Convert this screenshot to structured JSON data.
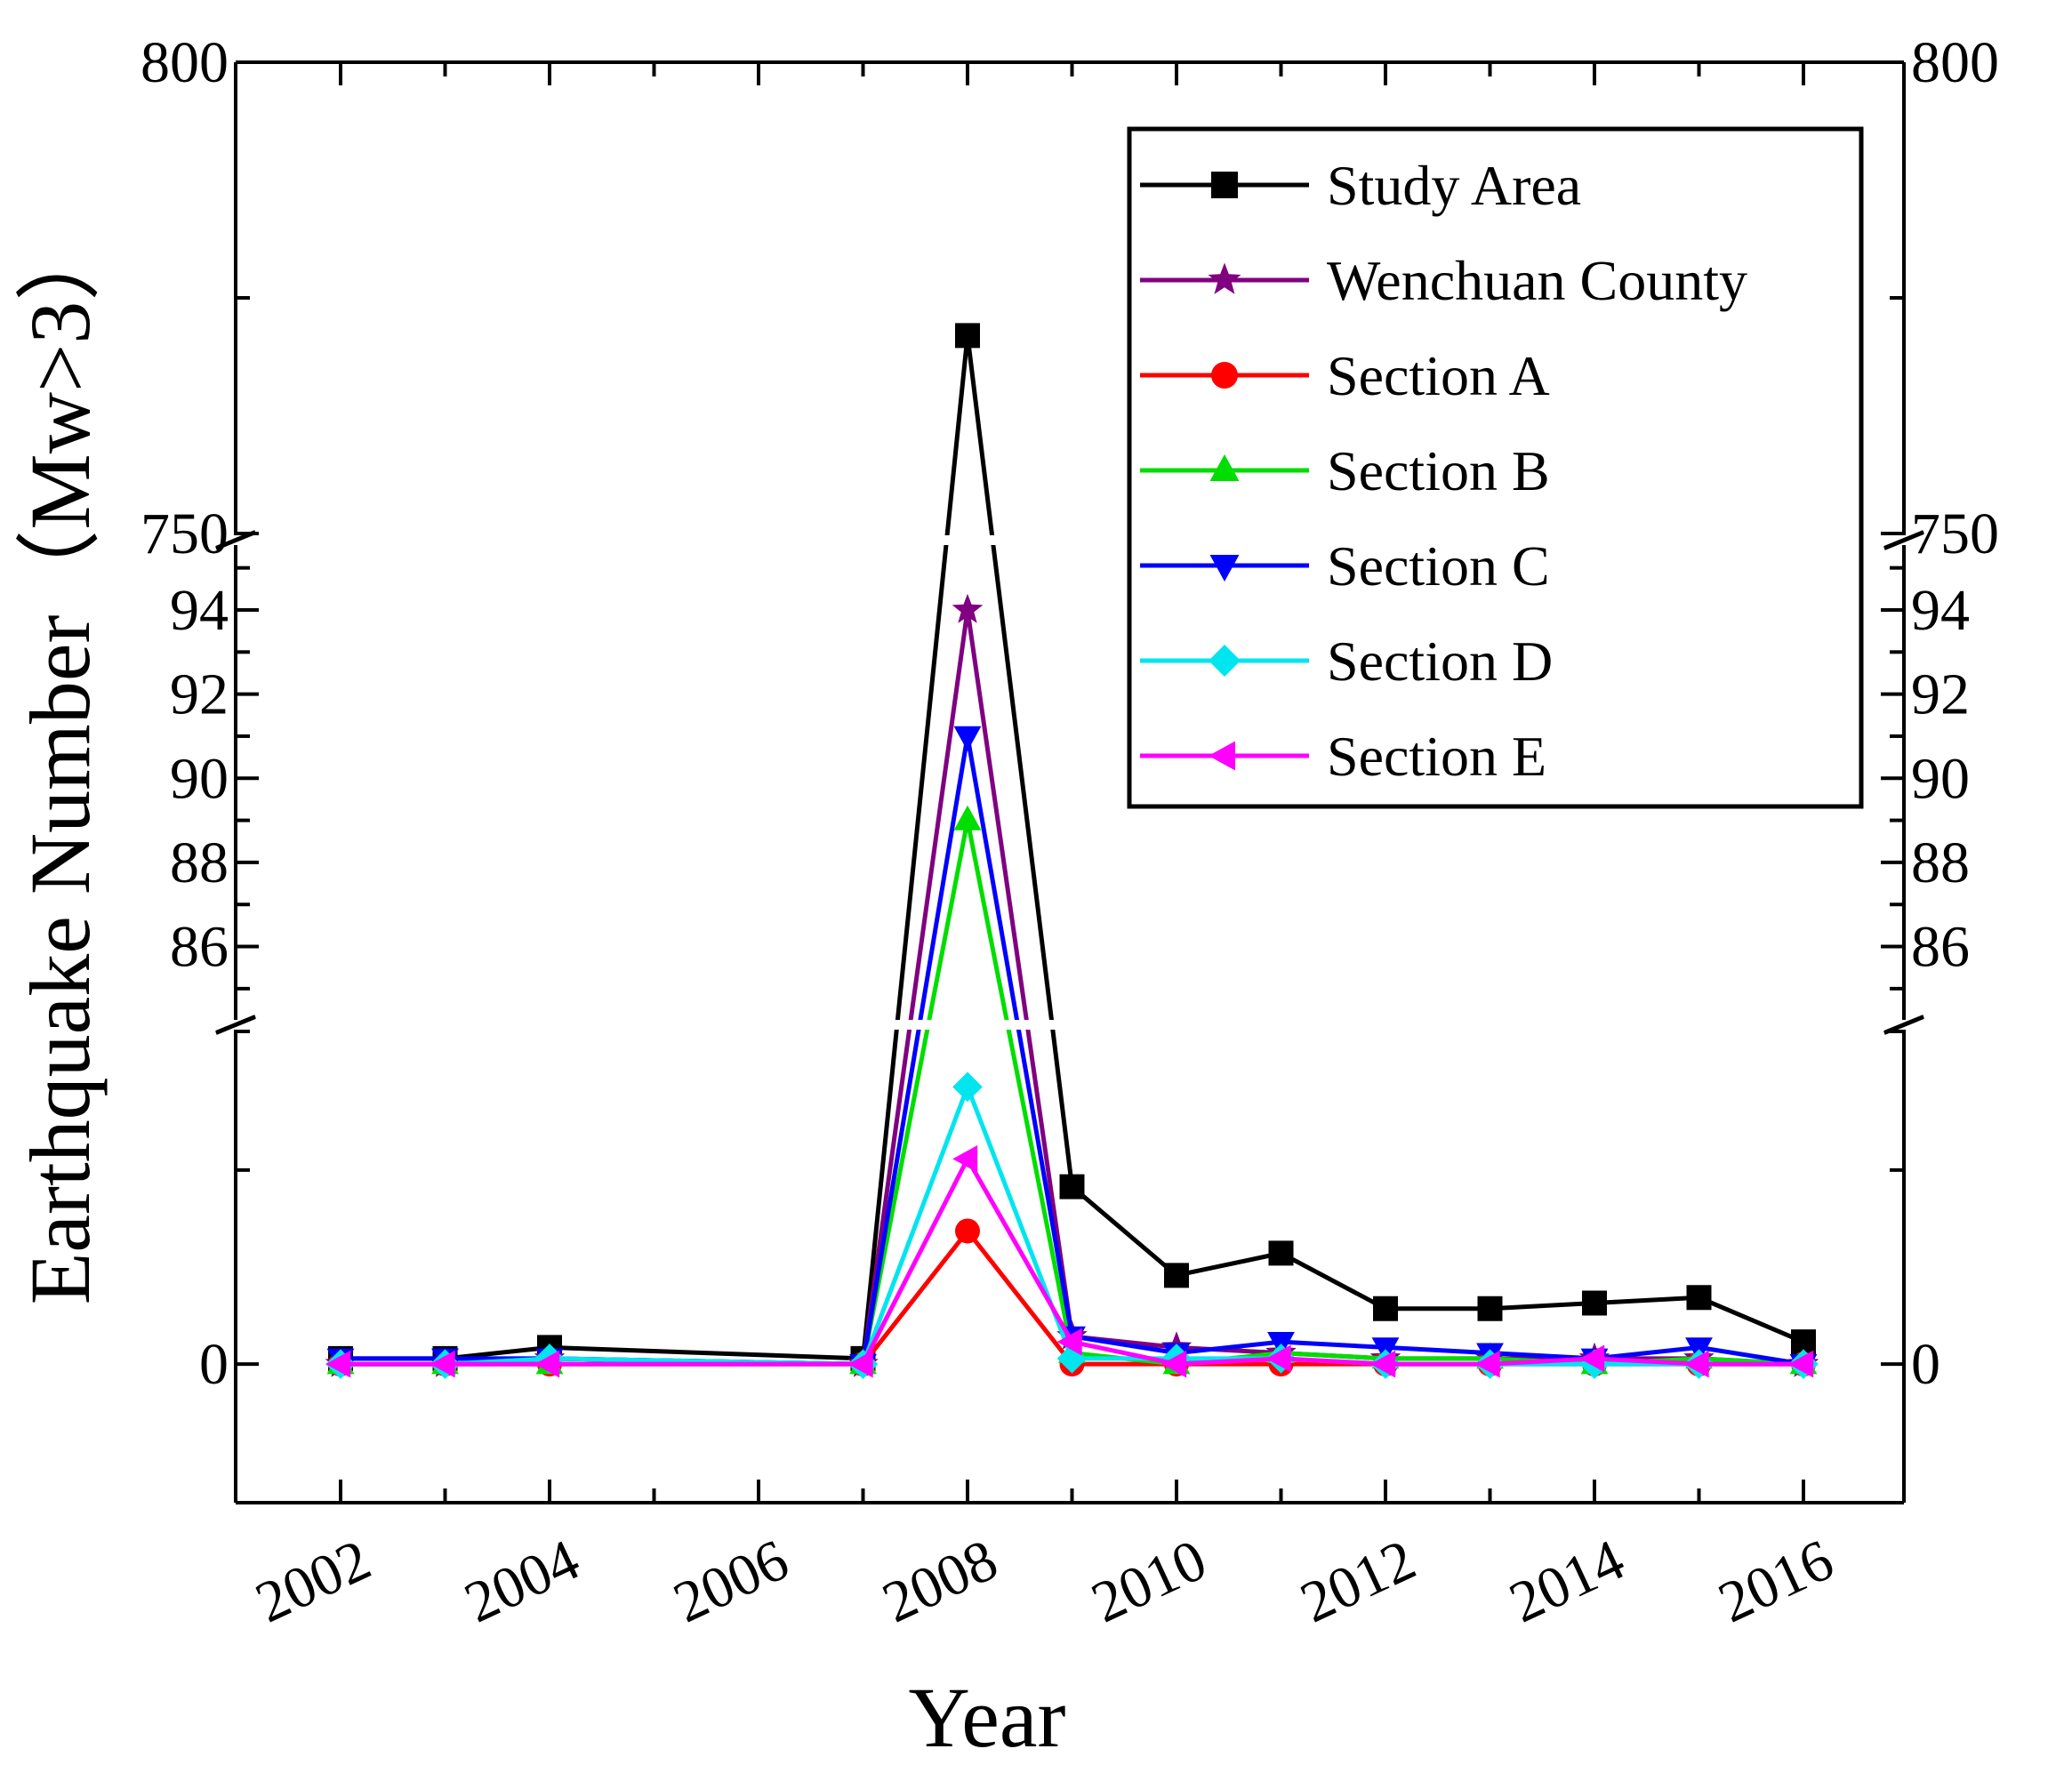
{
  "chart_data": {
    "type": "line",
    "title": "",
    "xlabel": "Year",
    "ylabel": "Earthquake Number（Mw>3）",
    "x_tick_labels": [
      "2002",
      "2004",
      "2006",
      "2008",
      "2010",
      "2012",
      "2014",
      "2016"
    ],
    "y_segments": [
      {
        "name": "lower",
        "range": [
          -25,
          60
        ],
        "tick_labels": [
          "0"
        ]
      },
      {
        "name": "middle",
        "range": [
          84.3,
          95.5
        ],
        "tick_labels": [
          "86",
          "88",
          "90",
          "92",
          "94"
        ]
      },
      {
        "name": "upper",
        "range": [
          750,
          800
        ],
        "tick_labels": [
          "750",
          "800"
        ]
      }
    ],
    "legend_position": "top-right",
    "x": [
      2002,
      2003,
      2004,
      2007,
      2008,
      2009,
      2010,
      2011,
      2012,
      2013,
      2014,
      2015,
      2016
    ],
    "series": [
      {
        "name": "Study Area",
        "color": "#000000",
        "marker": "square",
        "values": [
          1,
          1,
          3,
          1,
          771,
          32,
          16,
          20,
          10,
          10,
          11,
          12,
          4
        ]
      },
      {
        "name": "Wenchuan County",
        "color": "#800080",
        "marker": "star",
        "values": [
          0,
          0,
          1,
          0,
          94,
          5,
          3,
          2,
          1,
          1,
          1,
          1,
          0
        ]
      },
      {
        "name": "Section A",
        "color": "#ff0000",
        "marker": "circle",
        "values": [
          0,
          0,
          0,
          0,
          24,
          0,
          0,
          0,
          0,
          0,
          0,
          0,
          0
        ]
      },
      {
        "name": "Section B",
        "color": "#00dd00",
        "marker": "triangle-up",
        "values": [
          0,
          0,
          0,
          0,
          89,
          2,
          0,
          2,
          1,
          1,
          0,
          1,
          0
        ]
      },
      {
        "name": "Section C",
        "color": "#0000ff",
        "marker": "triangle-down",
        "values": [
          1,
          1,
          1,
          0,
          91,
          5,
          2,
          4,
          3,
          2,
          1,
          3,
          0
        ]
      },
      {
        "name": "Section D",
        "color": "#00e5ee",
        "marker": "diamond",
        "values": [
          0,
          0,
          1,
          0,
          50,
          1,
          1,
          1,
          0,
          0,
          0,
          0,
          0
        ]
      },
      {
        "name": "Section E",
        "color": "#ff00ff",
        "marker": "triangle-left",
        "values": [
          0,
          0,
          0,
          0,
          37,
          4,
          0,
          1,
          0,
          0,
          1,
          0,
          0
        ]
      }
    ]
  }
}
